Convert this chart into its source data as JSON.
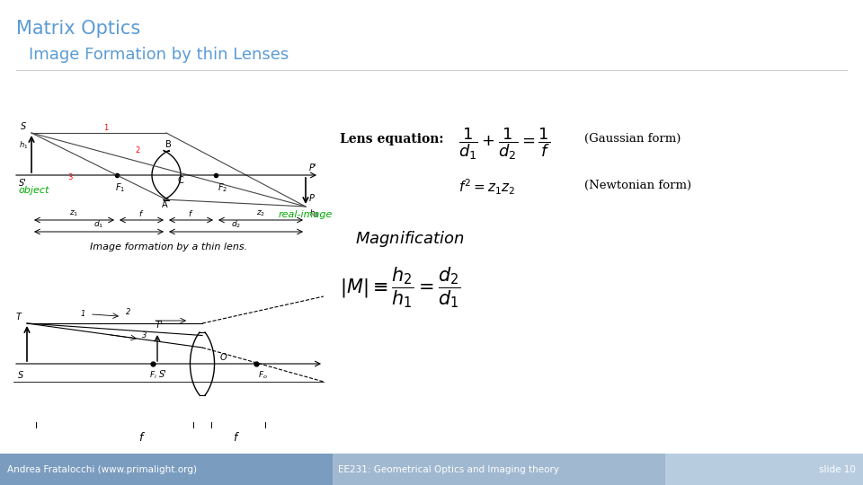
{
  "title": "Matrix Optics",
  "subtitle": "Image Formation by thin Lenses",
  "title_color": "#5b9bd5",
  "subtitle_color": "#5b9bd5",
  "bg_color": "#ffffff",
  "footer_bg_left": "#7a9cbf",
  "footer_bg_mid": "#a0b8d0",
  "footer_bg_right": "#b8cce0",
  "footer_text_left": "Andrea Fratalocchi (www.primalight.org)",
  "footer_text_mid": "EE231: Geometrical Optics and Imaging theory",
  "footer_text_right": "slide 10",
  "footer_text_color": "#ffffff",
  "lens_eq_label": "Lens equation:",
  "gaussian_label": "(Gaussian form)",
  "newtonian_label": "(Newtonian form)",
  "magnification_label": "Magnification",
  "object_label": "object",
  "real_image_label": "real-image",
  "caption_label": "Image formation by a thin lens.",
  "object_color": "#00aa00",
  "real_image_color": "#00aa00"
}
